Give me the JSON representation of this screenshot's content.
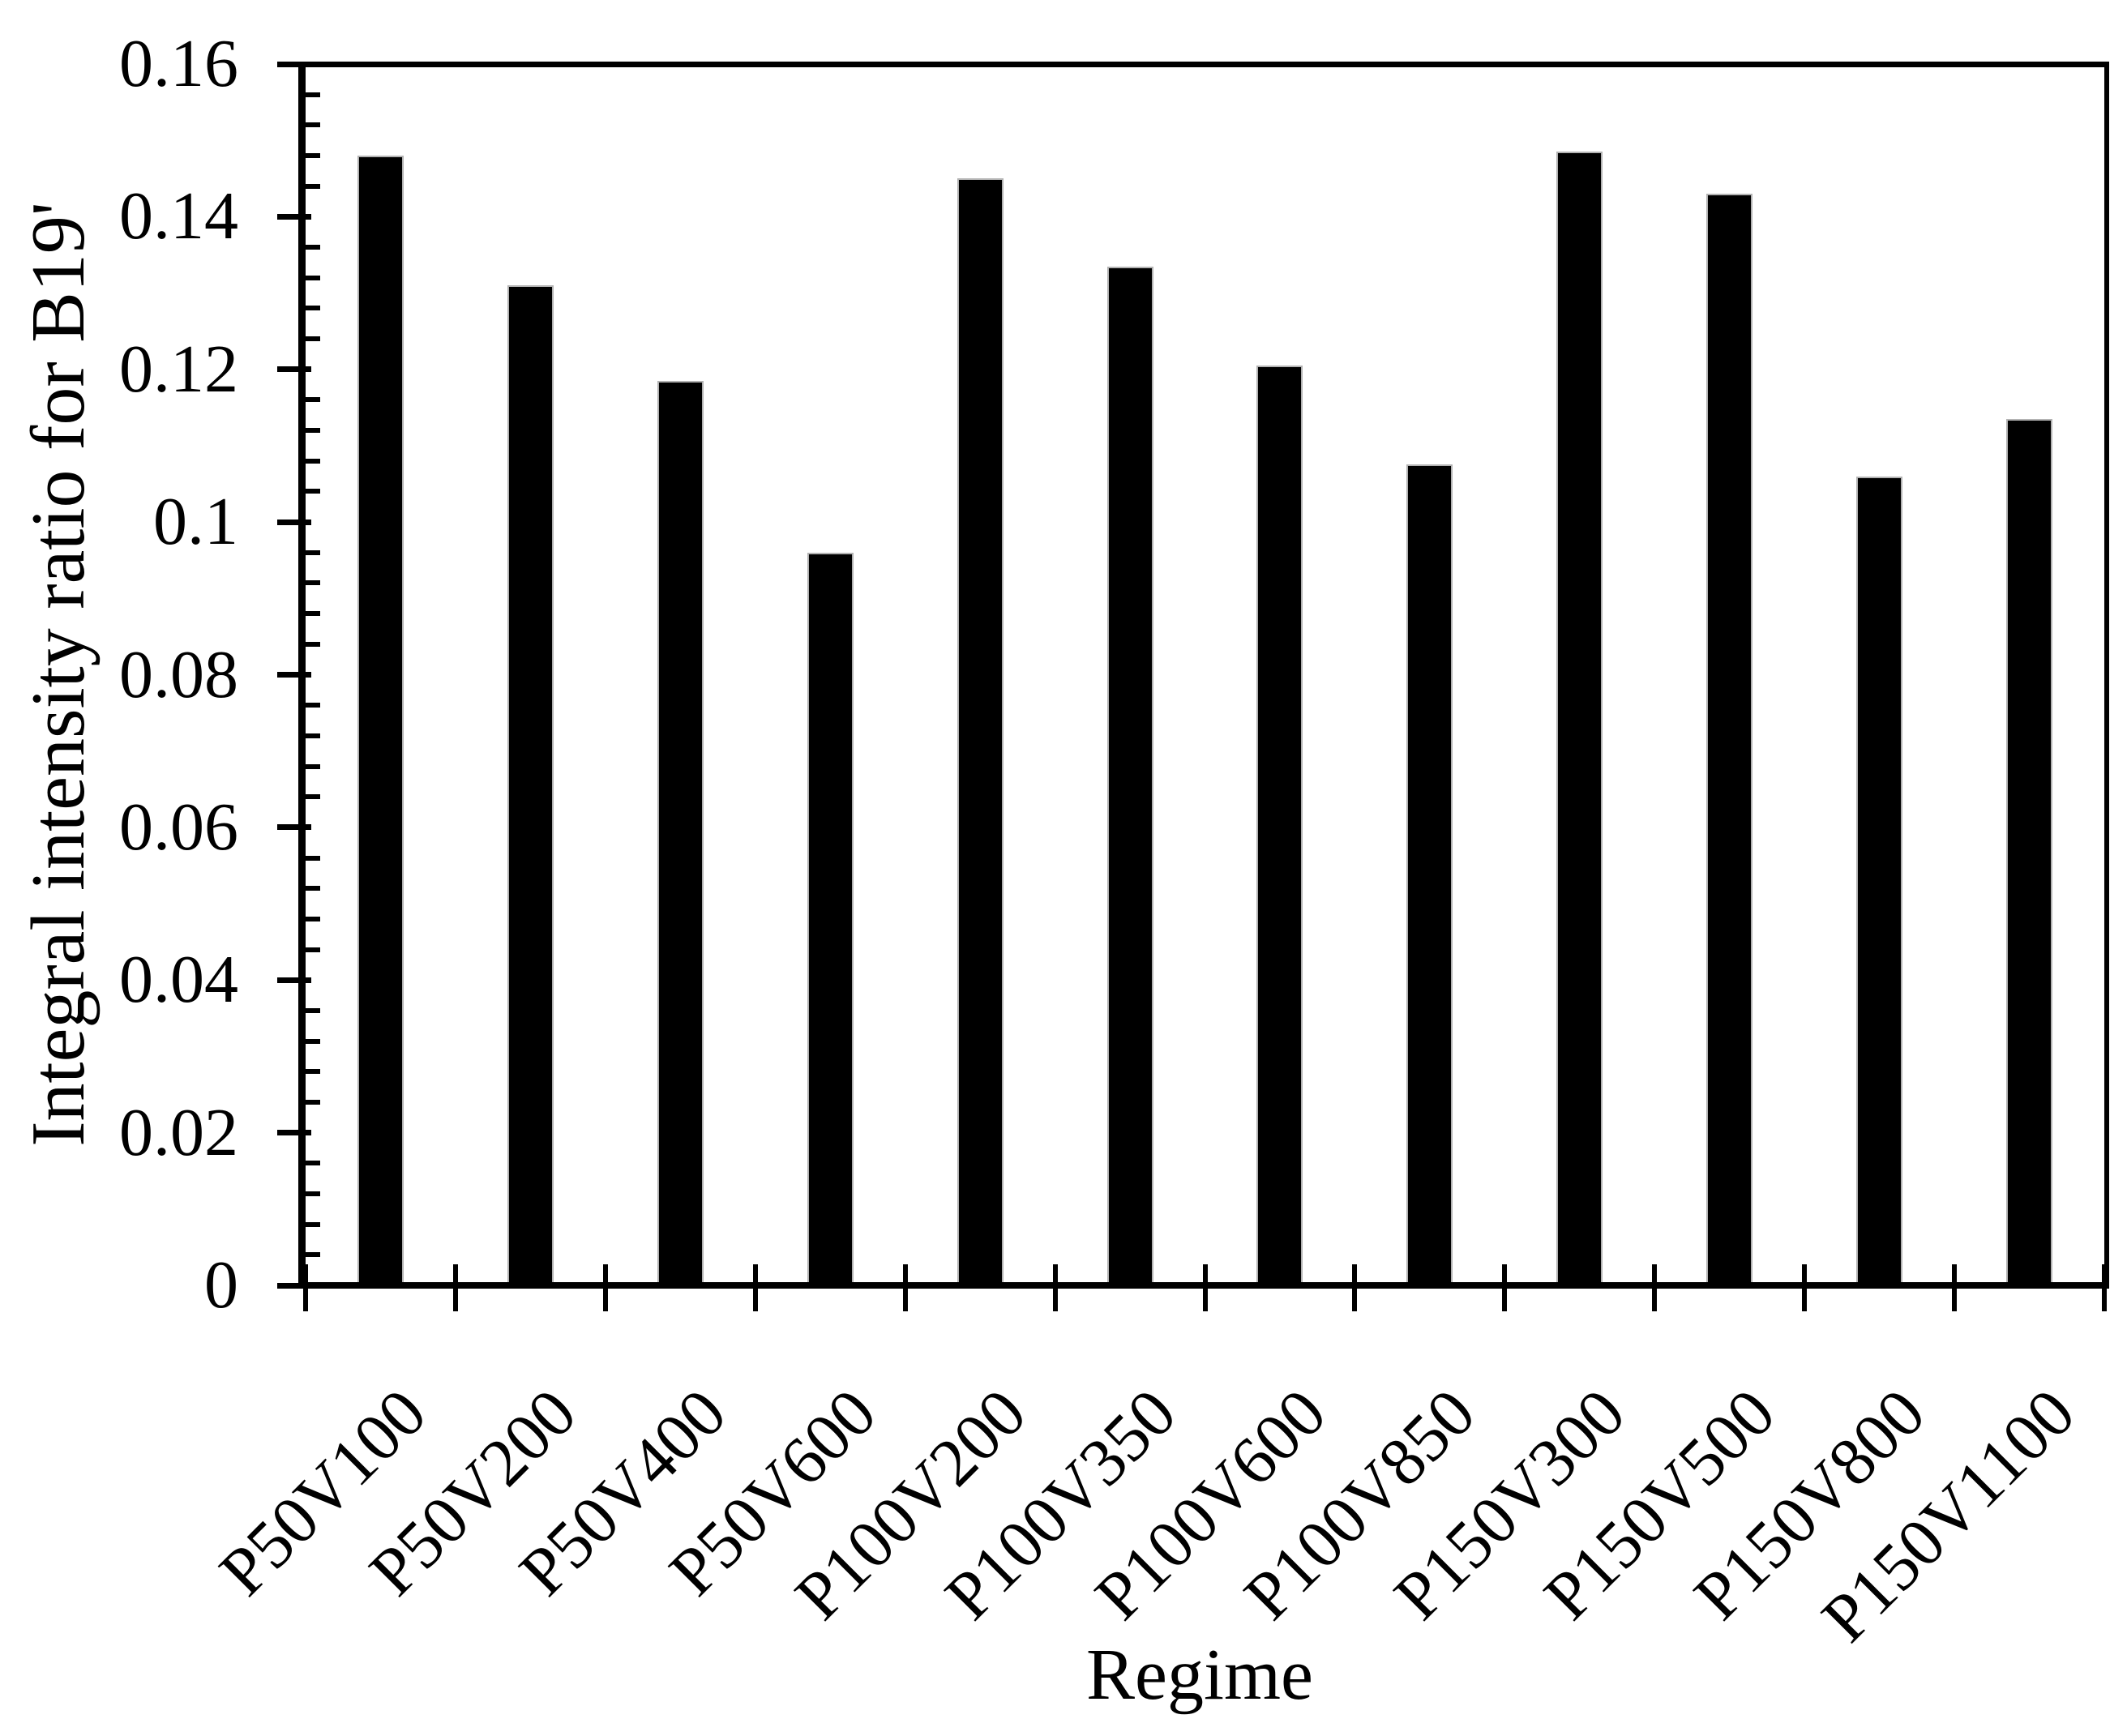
{
  "page": {
    "background_color": "#ffffff",
    "text_color": "#000000"
  },
  "chart_data": {
    "type": "bar",
    "title": "",
    "xlabel": "Regime",
    "ylabel": "Integral intensity ratio for B19'",
    "categories": [
      "P50V100",
      "P50V200",
      "P50V400",
      "P50V600",
      "P100V200",
      "P100V350",
      "P100V600",
      "P100V850",
      "P150V300",
      "P150V500",
      "P150V800",
      "P150V1100"
    ],
    "values": [
      0.148,
      0.131,
      0.1185,
      0.096,
      0.145,
      0.1335,
      0.1205,
      0.1075,
      0.1485,
      0.143,
      0.106,
      0.1135
    ],
    "ylim": [
      0,
      0.16
    ],
    "y_tick_values": [
      0,
      0.02,
      0.04,
      0.06,
      0.08,
      0.1,
      0.12,
      0.14,
      0.16
    ],
    "y_tick_labels": [
      "0",
      "0.02",
      "0.04",
      "0.06",
      "0.08",
      "0.1",
      "0.12",
      "0.14",
      "0.16"
    ],
    "y_minor_step": 0.004,
    "grid": "off",
    "legend": "none",
    "bar_color": "#000000",
    "bar_border_color": "#b3b3b3",
    "axis_color": "#000000"
  }
}
